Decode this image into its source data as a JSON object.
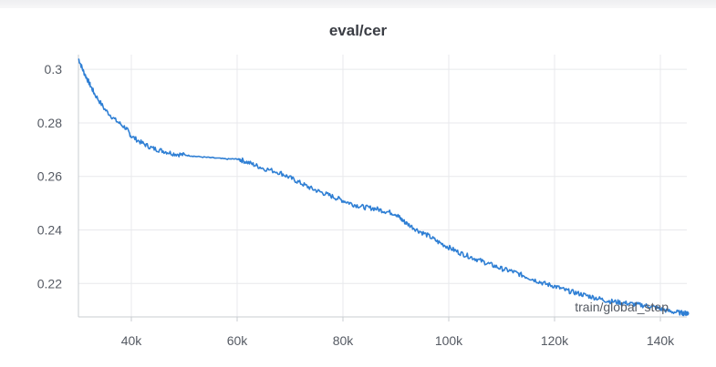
{
  "chart_data": {
    "type": "line",
    "title": "eval/cer",
    "xlabel": "train/global_step",
    "ylabel": "",
    "xlim": [
      30000,
      145000
    ],
    "ylim": [
      0.2075,
      0.3055
    ],
    "xticks": [
      40000,
      60000,
      80000,
      100000,
      120000,
      140000
    ],
    "xtick_labels": [
      "40k",
      "60k",
      "80k",
      "100k",
      "120k",
      "140k"
    ],
    "yticks": [
      0.22,
      0.24,
      0.26,
      0.28,
      0.3
    ],
    "ytick_labels": [
      "0.22",
      "0.24",
      "0.26",
      "0.28",
      "0.3"
    ],
    "grid": true,
    "series": [
      {
        "color": "#2f7fd4",
        "x": [
          30000,
          31000,
          32000,
          33000,
          35000,
          37000,
          39000,
          40000,
          42000,
          44000,
          46000,
          48000,
          50000,
          52000,
          55000,
          58000,
          60000,
          61000,
          63000,
          65000,
          68000,
          70000,
          72000,
          74000,
          76000,
          78000,
          80000,
          82000,
          84000,
          86000,
          88000,
          90000,
          91000,
          92000,
          94000,
          96000,
          98000,
          100000,
          102000,
          104000,
          106000,
          108000,
          110000,
          112000,
          114000,
          116000,
          118000,
          120000,
          122000,
          124000,
          126000,
          128000,
          130000,
          132000,
          134000,
          136000,
          138000,
          140000,
          142000,
          144000,
          145000
        ],
        "y": [
          0.304,
          0.299,
          0.295,
          0.291,
          0.285,
          0.281,
          0.278,
          0.275,
          0.2725,
          0.2705,
          0.2695,
          0.2685,
          0.268,
          0.2675,
          0.267,
          0.2665,
          0.2665,
          0.266,
          0.2645,
          0.263,
          0.2615,
          0.2595,
          0.2575,
          0.2555,
          0.254,
          0.2525,
          0.251,
          0.2495,
          0.2485,
          0.248,
          0.247,
          0.246,
          0.244,
          0.2425,
          0.24,
          0.238,
          0.2355,
          0.2335,
          0.2315,
          0.23,
          0.2285,
          0.227,
          0.2255,
          0.2245,
          0.223,
          0.2215,
          0.22,
          0.219,
          0.2175,
          0.2165,
          0.2155,
          0.2145,
          0.2135,
          0.213,
          0.2125,
          0.212,
          0.2115,
          0.2105,
          0.2095,
          0.209,
          0.2088
        ]
      }
    ]
  }
}
